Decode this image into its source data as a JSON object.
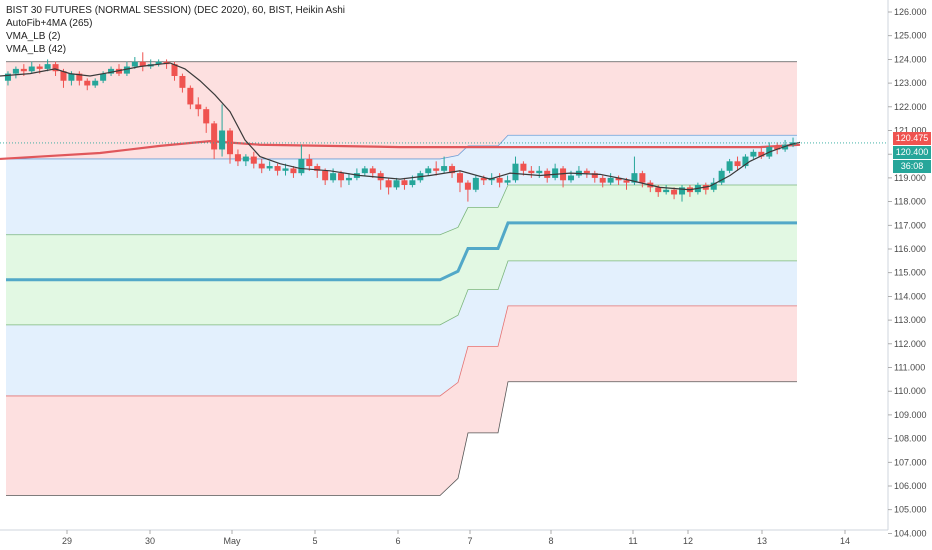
{
  "header": {
    "title": "BIST 30 FUTURES (NORMAL SESSION) (DEC 2020), 60, BIST, Heikin Ashi",
    "indicators": [
      "AutoFib+4MA (265)",
      "VMA_LB (2)",
      "VMA_LB (42)"
    ]
  },
  "price_tags": {
    "last_price": "120.475",
    "ma_value": "120.400",
    "countdown": "36:08"
  },
  "colors": {
    "up": "#26a69a",
    "down": "#ef5350",
    "fib_red_fill": "#fde0e0",
    "fib_blue_fill": "#e3f0fd",
    "fib_green_fill": "#e2f8e3",
    "ma_red": "#e0575b",
    "vma_thick": "#52a8c8",
    "tag_red": "#ef5350",
    "tag_green": "#26a69a"
  },
  "chart_data": {
    "type": "candlestick",
    "title": "BIST 30 FUTURES (NORMAL SESSION) (DEC 2020), 60, BIST, Heikin Ashi",
    "x_ticks": [
      "29",
      "30",
      "May",
      "5",
      "6",
      "7",
      "8",
      "11",
      "12",
      "13",
      "14"
    ],
    "y_ticks": [
      "104.000",
      "105.000",
      "106.000",
      "107.000",
      "108.000",
      "109.000",
      "110.000",
      "111.000",
      "112.000",
      "113.000",
      "114.000",
      "115.000",
      "116.000",
      "117.000",
      "118.000",
      "119.000",
      "120.000",
      "121.000",
      "122.000",
      "123.000",
      "124.000",
      "125.000",
      "126.000"
    ],
    "ylim": [
      103.6,
      126.6
    ],
    "last_price": 120.475,
    "fib_bands": {
      "before": [
        105.6,
        109.8,
        112.8,
        114.7,
        116.6,
        119.8,
        123.9
      ],
      "after": [
        110.4,
        113.6,
        115.5,
        117.1,
        118.7,
        120.8,
        123.9
      ]
    },
    "ma_265": [
      [
        0,
        119.8
      ],
      [
        40,
        119.9
      ],
      [
        100,
        120.05
      ],
      [
        160,
        120.35
      ],
      [
        210,
        120.55
      ],
      [
        260,
        120.4
      ],
      [
        400,
        120.3
      ],
      [
        600,
        120.3
      ],
      [
        760,
        120.3
      ],
      [
        800,
        120.4
      ]
    ],
    "vma_2": [
      [
        0,
        123.3
      ],
      [
        30,
        123.4
      ],
      [
        55,
        123.6
      ],
      [
        70,
        123.4
      ],
      [
        90,
        123.3
      ],
      [
        110,
        123.45
      ],
      [
        140,
        123.7
      ],
      [
        170,
        123.85
      ],
      [
        185,
        123.6
      ],
      [
        200,
        123.1
      ],
      [
        215,
        122.5
      ],
      [
        230,
        121.8
      ],
      [
        245,
        120.6
      ],
      [
        260,
        119.9
      ],
      [
        280,
        119.6
      ],
      [
        300,
        119.4
      ],
      [
        330,
        119.3
      ],
      [
        360,
        119.1
      ],
      [
        400,
        118.95
      ],
      [
        430,
        119.1
      ],
      [
        460,
        119.3
      ],
      [
        490,
        118.95
      ],
      [
        510,
        119.2
      ],
      [
        540,
        119.1
      ],
      [
        570,
        119.2
      ],
      [
        600,
        119.15
      ],
      [
        630,
        118.9
      ],
      [
        660,
        118.6
      ],
      [
        690,
        118.5
      ],
      [
        710,
        118.65
      ],
      [
        730,
        119.1
      ],
      [
        750,
        119.7
      ],
      [
        770,
        120.1
      ],
      [
        790,
        120.4
      ],
      [
        800,
        120.5
      ]
    ],
    "candles": [
      [
        123.1,
        123.4,
        122.9,
        123.5
      ],
      [
        123.4,
        123.6,
        123.2,
        123.7
      ],
      [
        123.6,
        123.5,
        123.3,
        123.8
      ],
      [
        123.5,
        123.7,
        123.4,
        123.9
      ],
      [
        123.7,
        123.6,
        123.4,
        123.8
      ],
      [
        123.6,
        123.8,
        123.5,
        124.0
      ],
      [
        123.8,
        123.5,
        123.3,
        123.9
      ],
      [
        123.5,
        123.1,
        122.8,
        123.6
      ],
      [
        123.1,
        123.4,
        122.9,
        123.5
      ],
      [
        123.4,
        123.1,
        122.9,
        123.5
      ],
      [
        123.1,
        122.9,
        122.7,
        123.2
      ],
      [
        122.9,
        123.1,
        122.8,
        123.2
      ],
      [
        123.1,
        123.4,
        123.0,
        123.5
      ],
      [
        123.4,
        123.6,
        123.3,
        123.7
      ],
      [
        123.6,
        123.4,
        123.3,
        123.8
      ],
      [
        123.4,
        123.7,
        123.3,
        123.9
      ],
      [
        123.7,
        123.9,
        123.6,
        124.1
      ],
      [
        123.9,
        123.7,
        123.5,
        124.3
      ],
      [
        123.7,
        123.8,
        123.6,
        124.0
      ],
      [
        123.8,
        123.9,
        123.7,
        124.0
      ],
      [
        123.9,
        123.8,
        123.6,
        124.0
      ],
      [
        123.8,
        123.3,
        123.1,
        123.9
      ],
      [
        123.3,
        122.8,
        122.6,
        123.4
      ],
      [
        122.8,
        122.1,
        121.9,
        122.9
      ],
      [
        122.1,
        121.9,
        121.6,
        122.4
      ],
      [
        121.9,
        121.3,
        120.9,
        122.0
      ],
      [
        121.3,
        120.2,
        119.8,
        121.4
      ],
      [
        120.2,
        121.0,
        119.9,
        122.1
      ],
      [
        121.0,
        120.0,
        119.6,
        121.1
      ],
      [
        120.0,
        119.7,
        119.5,
        120.2
      ],
      [
        119.7,
        119.9,
        119.5,
        120.0
      ],
      [
        119.9,
        119.6,
        119.4,
        120.1
      ],
      [
        119.6,
        119.4,
        119.2,
        119.8
      ],
      [
        119.4,
        119.5,
        119.3,
        119.7
      ],
      [
        119.5,
        119.3,
        119.1,
        119.6
      ],
      [
        119.3,
        119.4,
        119.1,
        119.6
      ],
      [
        119.4,
        119.2,
        119.0,
        119.5
      ],
      [
        119.2,
        119.8,
        119.1,
        120.4
      ],
      [
        119.8,
        119.5,
        119.3,
        120.0
      ],
      [
        119.5,
        119.3,
        119.0,
        119.6
      ],
      [
        119.3,
        118.9,
        118.7,
        119.4
      ],
      [
        118.9,
        119.2,
        118.8,
        119.4
      ],
      [
        119.2,
        118.9,
        118.6,
        119.3
      ],
      [
        118.9,
        119.0,
        118.7,
        119.2
      ],
      [
        119.0,
        119.2,
        118.9,
        119.4
      ],
      [
        119.2,
        119.4,
        119.1,
        119.5
      ],
      [
        119.4,
        119.2,
        119.0,
        119.5
      ],
      [
        119.2,
        118.9,
        118.5,
        119.3
      ],
      [
        118.9,
        118.6,
        118.3,
        119.0
      ],
      [
        118.6,
        118.9,
        118.5,
        119.0
      ],
      [
        118.9,
        118.7,
        118.5,
        119.0
      ],
      [
        118.7,
        118.9,
        118.6,
        119.1
      ],
      [
        118.9,
        119.2,
        118.8,
        119.3
      ],
      [
        119.2,
        119.4,
        119.1,
        119.5
      ],
      [
        119.4,
        119.3,
        119.1,
        119.7
      ],
      [
        119.3,
        119.5,
        119.2,
        119.9
      ],
      [
        119.5,
        119.2,
        119.0,
        119.6
      ],
      [
        119.2,
        118.8,
        118.4,
        119.3
      ],
      [
        118.8,
        118.5,
        118.0,
        118.9
      ],
      [
        118.5,
        119.0,
        118.4,
        119.1
      ],
      [
        119.0,
        118.9,
        118.7,
        119.1
      ],
      [
        118.9,
        119.0,
        118.7,
        119.2
      ],
      [
        119.0,
        118.8,
        118.6,
        119.2
      ],
      [
        118.8,
        118.9,
        118.7,
        119.1
      ],
      [
        118.9,
        119.6,
        118.8,
        119.9
      ],
      [
        119.6,
        119.3,
        119.1,
        119.7
      ],
      [
        119.3,
        119.2,
        119.0,
        119.5
      ],
      [
        119.2,
        119.3,
        119.0,
        119.5
      ],
      [
        119.3,
        119.0,
        118.8,
        119.4
      ],
      [
        119.0,
        119.4,
        118.9,
        119.6
      ],
      [
        119.4,
        118.9,
        118.6,
        119.5
      ],
      [
        118.9,
        119.1,
        118.8,
        119.3
      ],
      [
        119.1,
        119.3,
        119.0,
        119.5
      ],
      [
        119.3,
        119.2,
        119.0,
        119.4
      ],
      [
        119.2,
        119.0,
        118.8,
        119.3
      ],
      [
        119.0,
        118.8,
        118.6,
        119.1
      ],
      [
        118.8,
        119.0,
        118.7,
        119.2
      ],
      [
        119.0,
        118.9,
        118.7,
        119.1
      ],
      [
        118.9,
        118.8,
        118.5,
        119.0
      ],
      [
        118.8,
        119.2,
        118.7,
        119.9
      ],
      [
        119.2,
        118.8,
        118.6,
        119.3
      ],
      [
        118.8,
        118.6,
        118.4,
        118.9
      ],
      [
        118.6,
        118.4,
        118.2,
        118.7
      ],
      [
        118.4,
        118.5,
        118.3,
        118.7
      ],
      [
        118.5,
        118.3,
        118.1,
        118.6
      ],
      [
        118.3,
        118.6,
        118.0,
        118.7
      ],
      [
        118.6,
        118.4,
        118.2,
        118.7
      ],
      [
        118.4,
        118.7,
        118.3,
        118.8
      ],
      [
        118.7,
        118.5,
        118.3,
        118.8
      ],
      [
        118.5,
        118.8,
        118.4,
        119.0
      ],
      [
        118.8,
        119.3,
        118.7,
        119.4
      ],
      [
        119.3,
        119.7,
        119.2,
        119.8
      ],
      [
        119.7,
        119.5,
        119.3,
        119.9
      ],
      [
        119.5,
        119.9,
        119.4,
        120.0
      ],
      [
        119.9,
        120.1,
        119.8,
        120.2
      ],
      [
        120.1,
        119.9,
        119.8,
        120.3
      ],
      [
        119.9,
        120.3,
        119.8,
        120.5
      ],
      [
        120.3,
        120.2,
        120.0,
        120.5
      ],
      [
        120.2,
        120.4,
        120.1,
        120.6
      ],
      [
        120.4,
        120.5,
        120.3,
        120.7
      ]
    ]
  }
}
